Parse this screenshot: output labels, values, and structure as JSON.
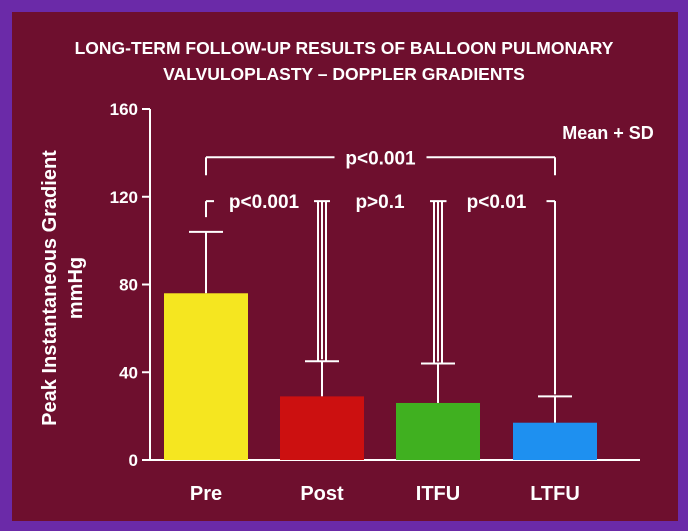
{
  "chart_data": {
    "type": "bar",
    "title_line1": "LONG-TERM FOLLOW-UP RESULTS OF BALLOON PULMONARY",
    "title_line2": "VALVULOPLASTY – DOPPLER GRADIENTS",
    "ylabel_line1": "Peak Instantaneous Gradient",
    "ylabel_line2": "mmHg",
    "ylim": [
      0,
      160
    ],
    "yticks": [
      0,
      40,
      80,
      120,
      160
    ],
    "categories": [
      "Pre",
      "Post",
      "ITFU",
      "LTFU"
    ],
    "values": [
      76,
      29,
      26,
      17
    ],
    "errors": [
      28,
      16,
      18,
      12
    ],
    "bar_colors": [
      "#f5e620",
      "#cc1010",
      "#40b020",
      "#1e90f0"
    ],
    "annotation": "Mean + SD",
    "comparisons": [
      {
        "from": "Pre",
        "to": "LTFU",
        "label": "p<0.001",
        "level": 138
      },
      {
        "from": "Pre",
        "to": "Post",
        "label": "p<0.001",
        "level": 118
      },
      {
        "from": "Post",
        "to": "ITFU",
        "label": "p>0.1",
        "level": 118
      },
      {
        "from": "ITFU",
        "to": "LTFU",
        "label": "p<0.01",
        "level": 118
      }
    ]
  }
}
